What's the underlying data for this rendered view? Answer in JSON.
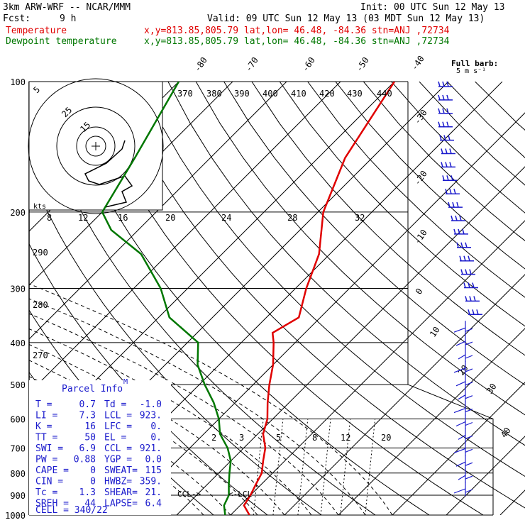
{
  "header": {
    "model": "3km ARW-WRF -- NCAR/MMM",
    "init": "Init: 00 UTC Sun 12 May 13",
    "fcst_label": "Fcst:",
    "fcst_value": "9 h",
    "valid": "Valid: 09 UTC Sun 12 May 13 (03 MDT Sun 12 May 13)",
    "temp_label": "Temperature",
    "temp_loc": "x,y=813.85,805.79   lat,lon= 46.48, -84.36   stn=ANJ ,72734",
    "dew_label": "Dewpoint temperature",
    "dew_loc": "x,y=813.85,805.79   lat,lon= 46.48, -84.36   stn=ANJ ,72734"
  },
  "barb_legend": {
    "line1": "Full barb:",
    "line2": "5 m s⁻¹"
  },
  "parcel_info": {
    "title": "Parcel Info",
    "rows": [
      [
        "T  =",
        "0.7",
        "Td =",
        "-1.0"
      ],
      [
        "LI =",
        "7.3",
        "LCL =",
        "923."
      ],
      [
        "K  =",
        "16",
        "LFC =",
        "0."
      ],
      [
        "TT =",
        "50",
        "EL  =",
        "0."
      ],
      [
        "SWI =",
        "6.9",
        "CCL =",
        "921."
      ],
      [
        "PW =",
        "0.88",
        "YGP =",
        "0.0"
      ],
      [
        "CAPE =",
        "0",
        "SWEAT=",
        "115"
      ],
      [
        "CIN =",
        "0",
        "HWBZ=",
        "359."
      ],
      [
        "Tc =",
        "1.3",
        "SHEAR=",
        "21."
      ],
      [
        "SREH =",
        "44",
        "LAPSE=",
        "6.4"
      ]
    ],
    "cell": "CELL = 340/22"
  },
  "annotations": {
    "ccl": "CCL->",
    "lcl": "<-LCL",
    "kts": "kts",
    "m_marker": "M"
  },
  "colors": {
    "temperature": "#e00000",
    "dewpoint": "#007700",
    "parcel": "#1a1acc",
    "barbs": "#1a1acc"
  },
  "chart_data": {
    "type": "line",
    "title": "",
    "ylabel": "",
    "pressure_levels": [
      "100",
      "200",
      "300",
      "400",
      "500",
      "600",
      "700",
      "800",
      "900",
      "1000"
    ],
    "isotherm_labels": [
      "-80",
      "-70",
      "-60",
      "-50",
      "-40",
      "-30",
      "-20",
      "-10",
      "0",
      "10",
      "20",
      "30",
      "40"
    ],
    "theta_labels": [
      "370",
      "380",
      "390",
      "400",
      "410",
      "420",
      "430",
      "440"
    ],
    "hodo_speed_labels": [
      "8",
      "12",
      "16",
      "20",
      "24",
      "28",
      "32"
    ],
    "theta_side_labels": [
      "290",
      "280",
      "270"
    ],
    "mixing_ratio_labels": [
      "2",
      "3",
      "5",
      "8",
      "12",
      "20"
    ],
    "hodo_ring_labels": [
      "5",
      "25",
      "15"
    ],
    "series": [
      {
        "name": "Temperature",
        "points": [
          [
            1000,
            3.5
          ],
          [
            950,
            0.7
          ],
          [
            900,
            0.0
          ],
          [
            850,
            -1.0
          ],
          [
            800,
            -2.0
          ],
          [
            750,
            -4.0
          ],
          [
            700,
            -6.0
          ],
          [
            650,
            -9.0
          ],
          [
            600,
            -11.0
          ],
          [
            550,
            -14.0
          ],
          [
            500,
            -17.0
          ],
          [
            450,
            -20.0
          ],
          [
            400,
            -24.0
          ],
          [
            380,
            -26.0
          ],
          [
            350,
            -24.0
          ],
          [
            300,
            -28.0
          ],
          [
            250,
            -32.0
          ],
          [
            200,
            -39.0
          ],
          [
            150,
            -45.0
          ],
          [
            100,
            -50.0
          ]
        ]
      },
      {
        "name": "Dewpoint temperature",
        "points": [
          [
            1000,
            -1.0
          ],
          [
            950,
            -3.0
          ],
          [
            900,
            -4.0
          ],
          [
            850,
            -6.0
          ],
          [
            800,
            -8.0
          ],
          [
            750,
            -10.0
          ],
          [
            700,
            -13.0
          ],
          [
            650,
            -17.0
          ],
          [
            600,
            -20.0
          ],
          [
            550,
            -24.0
          ],
          [
            500,
            -29.0
          ],
          [
            450,
            -34.0
          ],
          [
            400,
            -38.0
          ],
          [
            350,
            -48.0
          ],
          [
            300,
            -55.0
          ],
          [
            250,
            -65.0
          ],
          [
            220,
            -75.0
          ],
          [
            200,
            -80.0
          ],
          [
            150,
            -84.0
          ],
          [
            100,
            -90.0
          ]
        ]
      }
    ]
  }
}
